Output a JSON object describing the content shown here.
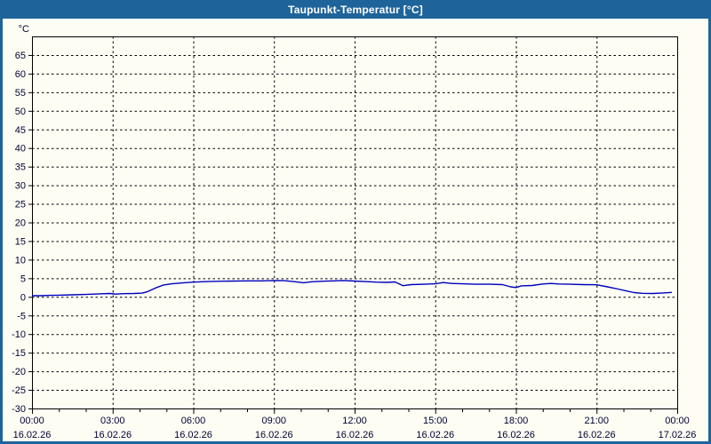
{
  "window": {
    "title": "Taupunkt-Temperatur [°C]"
  },
  "colors": {
    "frame": "#1E649B",
    "title_text": "#FFFFFF",
    "content_bg": "#FDFDF4",
    "plot_border": "#000000",
    "grid": "#000000",
    "tick_label": "#000033",
    "line": "#0000BF"
  },
  "chart_data": {
    "type": "line",
    "title": "Taupunkt-Temperatur [°C]",
    "ylabel": "°C",
    "xlabel": "",
    "grid": "dashed",
    "legend": "none",
    "ylim": [
      -30,
      70
    ],
    "ytick_step": 5,
    "yticks": [
      65,
      60,
      55,
      50,
      45,
      40,
      35,
      30,
      25,
      20,
      15,
      10,
      5,
      0,
      -5,
      -10,
      -15,
      -20,
      -25,
      -30
    ],
    "x_hours_range": [
      0,
      24
    ],
    "minor_tick_every_hours": 1,
    "major_tick_every_hours": 3,
    "x_ticks": [
      {
        "hour": 0,
        "time": "00:00",
        "date": "16.02.26"
      },
      {
        "hour": 3,
        "time": "03:00",
        "date": "16.02.26"
      },
      {
        "hour": 6,
        "time": "06:00",
        "date": "16.02.26"
      },
      {
        "hour": 9,
        "time": "09:00",
        "date": "16.02.26"
      },
      {
        "hour": 12,
        "time": "12:00",
        "date": "16.02.26"
      },
      {
        "hour": 15,
        "time": "15:00",
        "date": "16.02.26"
      },
      {
        "hour": 18,
        "time": "18:00",
        "date": "16.02.26"
      },
      {
        "hour": 21,
        "time": "21:00",
        "date": "16.02.26"
      },
      {
        "hour": 24,
        "time": "00:00",
        "date": "17.02.26"
      }
    ],
    "series": [
      {
        "name": "Taupunkt-Temperatur",
        "color": "#0000BF",
        "points": [
          [
            0.0,
            0.3
          ],
          [
            0.3,
            0.3
          ],
          [
            0.7,
            0.4
          ],
          [
            1.0,
            0.45
          ],
          [
            1.5,
            0.55
          ],
          [
            2.0,
            0.65
          ],
          [
            2.5,
            0.8
          ],
          [
            2.9,
            0.9
          ],
          [
            3.1,
            0.75
          ],
          [
            3.4,
            0.85
          ],
          [
            3.8,
            0.9
          ],
          [
            4.1,
            1.0
          ],
          [
            4.3,
            1.4
          ],
          [
            4.6,
            2.4
          ],
          [
            4.9,
            3.2
          ],
          [
            5.2,
            3.5
          ],
          [
            5.6,
            3.75
          ],
          [
            6.0,
            3.95
          ],
          [
            6.5,
            4.1
          ],
          [
            7.0,
            4.2
          ],
          [
            7.5,
            4.25
          ],
          [
            8.0,
            4.3
          ],
          [
            8.5,
            4.3
          ],
          [
            9.0,
            4.4
          ],
          [
            9.4,
            4.35
          ],
          [
            9.8,
            4.05
          ],
          [
            10.1,
            3.8
          ],
          [
            10.4,
            4.05
          ],
          [
            10.8,
            4.2
          ],
          [
            11.2,
            4.3
          ],
          [
            11.6,
            4.4
          ],
          [
            12.0,
            4.25
          ],
          [
            12.4,
            4.1
          ],
          [
            12.8,
            3.95
          ],
          [
            13.2,
            3.9
          ],
          [
            13.5,
            4.0
          ],
          [
            13.8,
            3.0
          ],
          [
            14.1,
            3.3
          ],
          [
            14.6,
            3.4
          ],
          [
            15.0,
            3.5
          ],
          [
            15.3,
            3.85
          ],
          [
            15.6,
            3.6
          ],
          [
            16.0,
            3.5
          ],
          [
            16.5,
            3.4
          ],
          [
            17.0,
            3.4
          ],
          [
            17.5,
            3.3
          ],
          [
            17.8,
            2.7
          ],
          [
            18.0,
            2.5
          ],
          [
            18.2,
            2.95
          ],
          [
            18.6,
            3.05
          ],
          [
            19.0,
            3.45
          ],
          [
            19.3,
            3.6
          ],
          [
            19.6,
            3.45
          ],
          [
            20.0,
            3.4
          ],
          [
            20.5,
            3.3
          ],
          [
            21.0,
            3.25
          ],
          [
            21.4,
            2.7
          ],
          [
            21.8,
            2.1
          ],
          [
            22.1,
            1.6
          ],
          [
            22.4,
            1.15
          ],
          [
            22.7,
            0.95
          ],
          [
            23.1,
            0.9
          ],
          [
            23.4,
            1.0
          ],
          [
            23.8,
            1.2
          ]
        ]
      }
    ]
  }
}
